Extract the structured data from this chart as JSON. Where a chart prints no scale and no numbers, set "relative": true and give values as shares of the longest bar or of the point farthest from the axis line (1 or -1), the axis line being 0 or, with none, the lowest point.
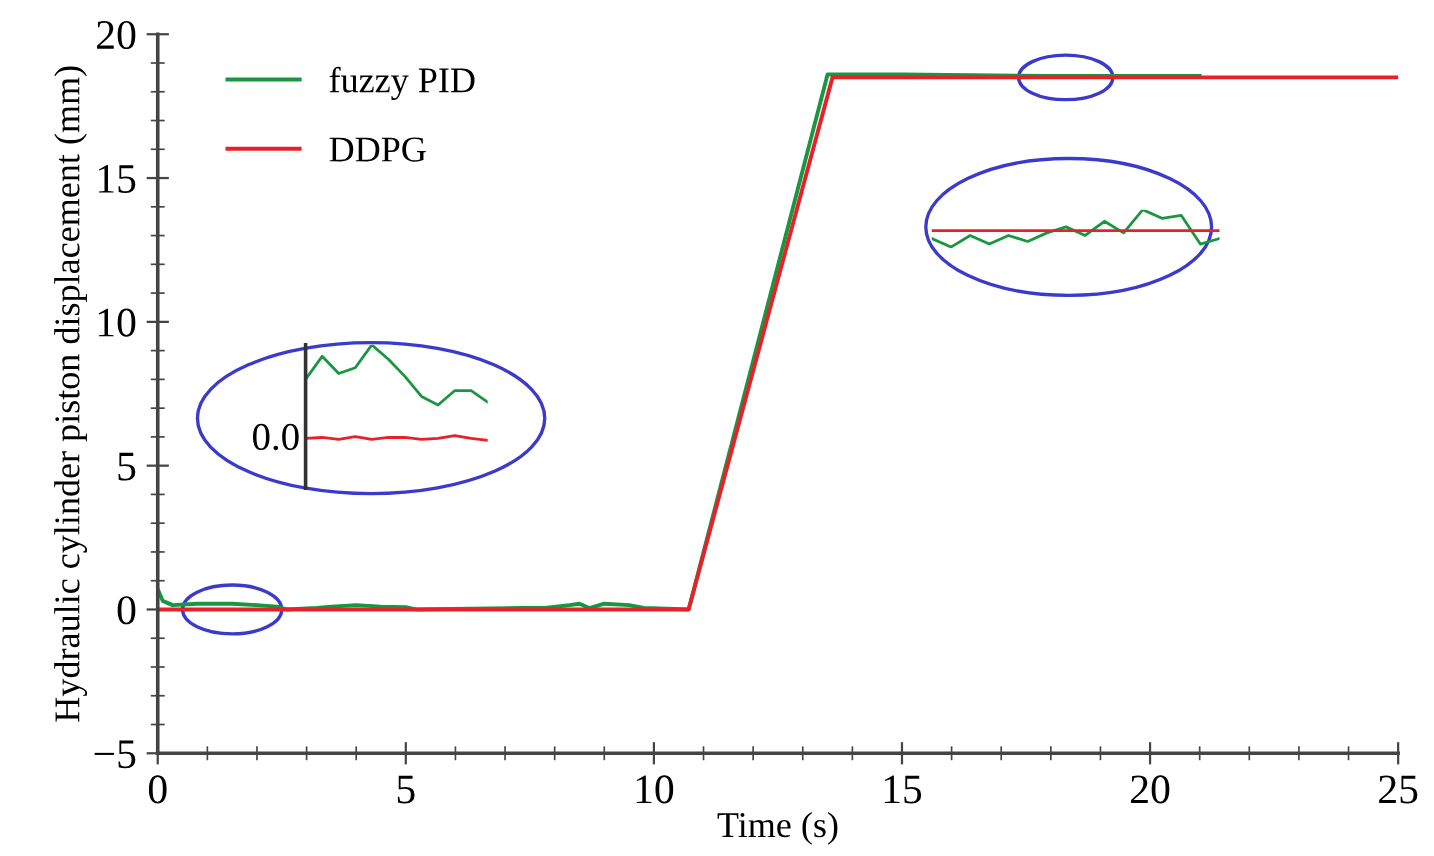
{
  "chart_data": [
    {
      "type": "line",
      "xlabel": "Time (s)",
      "ylabel": "Hydraulic cylinder piston displacement (mm)",
      "xlim": [
        0,
        25
      ],
      "ylim": [
        -5,
        20
      ],
      "xticks": [
        0,
        5,
        10,
        15,
        20,
        25
      ],
      "yticks": [
        -5,
        0,
        5,
        10,
        15,
        20
      ],
      "legend": "top left",
      "series": [
        {
          "name": "fuzzy PID",
          "color": "#1a9641",
          "x": [
            0,
            0.1,
            0.3,
            0.8,
            1.5,
            2.0,
            2.4,
            2.6,
            3.2,
            3.5,
            4.0,
            4.5,
            5.0,
            5.2,
            7.3,
            7.8,
            8.3,
            8.5,
            8.7,
            9.0,
            9.5,
            9.8,
            10.7,
            13.5,
            15,
            18,
            21
          ],
          "values": [
            0.7,
            0.3,
            0.15,
            0.2,
            0.2,
            0.15,
            0.1,
            0,
            0.05,
            0.1,
            0.15,
            0.1,
            0.08,
            0,
            0.05,
            0.05,
            0.15,
            0.2,
            0.05,
            0.2,
            0.15,
            0.05,
            0,
            18.6,
            18.6,
            18.55,
            18.55
          ]
        },
        {
          "name": "DDPG",
          "color": "#e8202a",
          "x": [
            0,
            10.7,
            13.6,
            25
          ],
          "values": [
            0,
            0,
            18.5,
            18.5
          ]
        }
      ]
    },
    {
      "type": "line",
      "relative": true,
      "annotations": [
        "0.0"
      ],
      "categories": [
        null,
        null,
        null,
        null,
        null,
        null,
        null,
        null,
        null,
        null,
        null,
        null
      ],
      "series": [
        {
          "color": "#1a9641",
          "values": [
            0.64,
            0.88,
            0.7,
            0.76,
            1.0,
            0.85,
            0.67,
            0.46,
            0.37,
            0.52,
            0.52,
            0.4
          ]
        },
        {
          "color": "#e8202a",
          "values": [
            0.02,
            0.03,
            0.01,
            0.04,
            0.01,
            0.03,
            0.03,
            0.01,
            0.02,
            0.05,
            0.02,
            0.0
          ]
        }
      ]
    },
    {
      "type": "line",
      "relative": true,
      "categories": [
        null,
        null,
        null,
        null,
        null,
        null,
        null,
        null,
        null,
        null,
        null,
        null,
        null,
        null,
        null,
        null
      ],
      "series": [
        {
          "color": "#1a9641",
          "values": [
            0.23,
            0,
            0.31,
            0.08,
            0.31,
            0.15,
            0.38,
            0.54,
            0.31,
            0.69,
            0.38,
            1.0,
            0.77,
            0.85,
            0.08,
            0.23
          ]
        },
        {
          "color": "#e8202a",
          "values": [
            0.44,
            0.44,
            0.44,
            0.44,
            0.44,
            0.44,
            0.44,
            0.44,
            0.44,
            0.44,
            0.44,
            0.44,
            0.44,
            0.44,
            0.44,
            0.44
          ]
        }
      ]
    }
  ]
}
